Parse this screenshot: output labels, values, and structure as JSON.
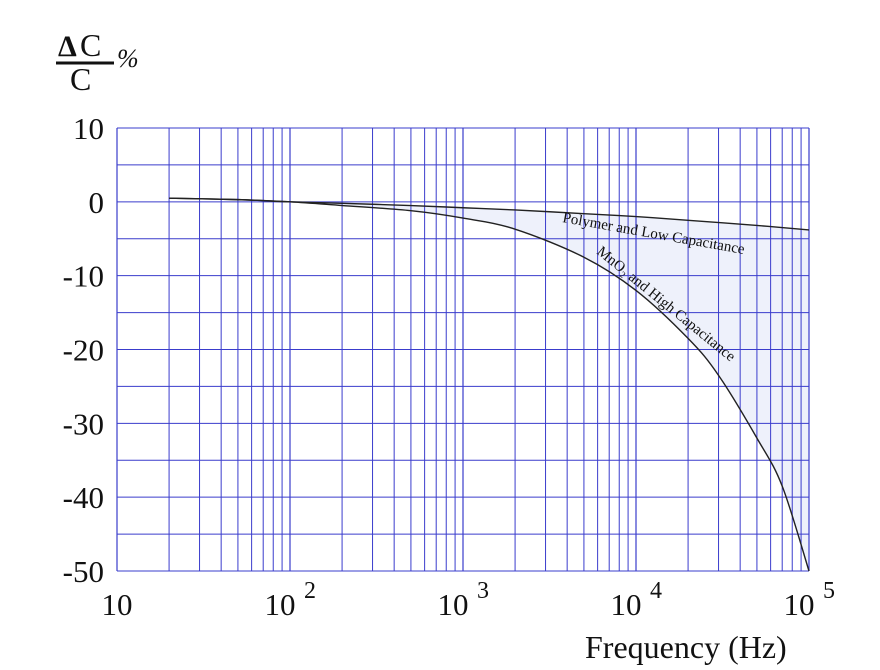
{
  "chart_data": {
    "type": "line",
    "title": "",
    "ylabel": {
      "delta": "Δ",
      "numerator": "C",
      "denominator": "C",
      "unit": "%"
    },
    "xlabel": "Frequency (Hz)",
    "x_scale": "log",
    "xlim": [
      10,
      100000
    ],
    "ylim": [
      -50,
      10
    ],
    "grid": true,
    "y_ticks": [
      "10",
      "0",
      "-10",
      "-20",
      "-30",
      "-40",
      "-50"
    ],
    "x_ticks": [
      {
        "base": "10",
        "exp": ""
      },
      {
        "base": "10",
        "exp": "2"
      },
      {
        "base": "10",
        "exp": "3"
      },
      {
        "base": "10",
        "exp": "4"
      },
      {
        "base": "10",
        "exp": "5"
      }
    ],
    "series": [
      {
        "name": "Polymer and Low Capacitance",
        "x": [
          20,
          50,
          100,
          200,
          500,
          1000,
          2000,
          5000,
          10000,
          20000,
          50000,
          100000
        ],
        "y": [
          0.5,
          0.3,
          0.0,
          -0.2,
          -0.5,
          -0.8,
          -1.1,
          -1.6,
          -2.0,
          -2.5,
          -3.2,
          -3.8
        ]
      },
      {
        "name": "MnO₂ and High Capacitance",
        "x": [
          20,
          50,
          100,
          200,
          500,
          1000,
          2000,
          5000,
          10000,
          20000,
          30000,
          50000,
          70000,
          100000
        ],
        "y": [
          0.5,
          0.3,
          0.0,
          -0.5,
          -1.2,
          -2.2,
          -3.7,
          -7.5,
          -12.0,
          -18.5,
          -23.5,
          -32.0,
          -38.5,
          -50.0
        ]
      }
    ],
    "region_fill_color": "#eef1fb",
    "grid_color": "#3a3ccc",
    "curve_color": "#222222"
  }
}
